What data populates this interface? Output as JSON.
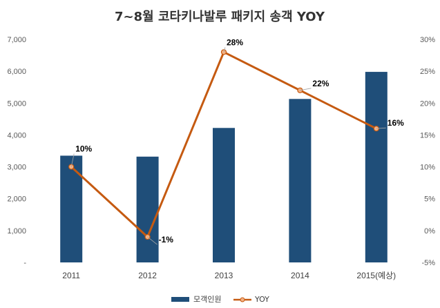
{
  "chart_data": {
    "type": "bar",
    "title": "7~8월 코타키나발루 패키지 송객 YOY",
    "categories": [
      "2011",
      "2012",
      "2013",
      "2014",
      "2015(예상)"
    ],
    "series": [
      {
        "name": "모객인원",
        "kind": "bar",
        "axis": "left",
        "color": "#1F4E79",
        "values": [
          3350,
          3320,
          4220,
          5130,
          5980
        ]
      },
      {
        "name": "YOY",
        "kind": "line",
        "axis": "right",
        "color": "#C55A11",
        "marker_fill": "#F4B183",
        "values": [
          10,
          -1,
          28,
          22,
          16
        ],
        "labels": [
          "10%",
          "-1%",
          "28%",
          "22%",
          "16%"
        ]
      }
    ],
    "y_left": {
      "ylim": [
        0,
        7000
      ],
      "ticks": [
        0,
        1000,
        2000,
        3000,
        4000,
        5000,
        6000,
        7000
      ],
      "tick_labels": [
        "-",
        "1,000",
        "2,000",
        "3,000",
        "4,000",
        "5,000",
        "6,000",
        "7,000"
      ]
    },
    "y_right": {
      "ylim": [
        -5,
        30
      ],
      "ticks": [
        -5,
        0,
        5,
        10,
        15,
        20,
        25,
        30
      ],
      "tick_labels": [
        "-5%",
        "0%",
        "5%",
        "10%",
        "15%",
        "20%",
        "25%",
        "30%"
      ]
    },
    "grid": false,
    "legend": {
      "position": "bottom",
      "entries": [
        "모객인원",
        "YOY"
      ]
    }
  }
}
